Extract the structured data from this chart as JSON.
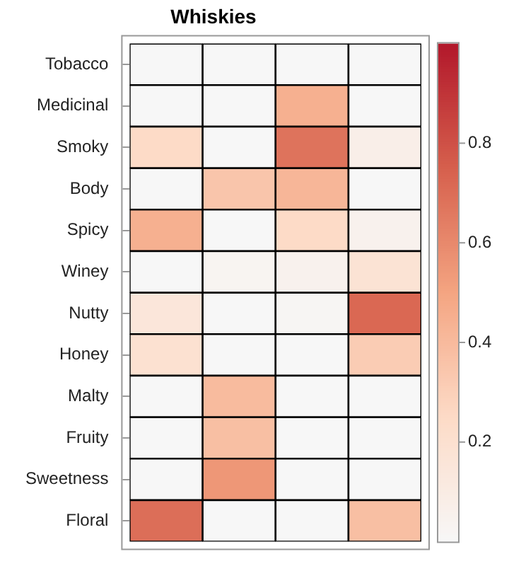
{
  "chart_data": {
    "type": "heatmap",
    "title": "Whiskies",
    "categories": [
      null,
      null,
      null,
      null
    ],
    "y_categories": [
      "Tobacco",
      "Medicinal",
      "Smoky",
      "Body",
      "Spicy",
      "Winey",
      "Nutty",
      "Honey",
      "Malty",
      "Fruity",
      "Sweetness",
      "Floral"
    ],
    "cells": [
      [
        0,
        0,
        0,
        0
      ],
      [
        0,
        0,
        0.45,
        0
      ],
      [
        0.25,
        0,
        0.68,
        0.08
      ],
      [
        0,
        0.35,
        0.42,
        0
      ],
      [
        0.45,
        0,
        0.25,
        0.05
      ],
      [
        0,
        0.03,
        0.05,
        0.18
      ],
      [
        0.15,
        0,
        0.02,
        0.72
      ],
      [
        0.2,
        0,
        0,
        0.32
      ],
      [
        0,
        0.4,
        0,
        0
      ],
      [
        0,
        0.38,
        0,
        0
      ],
      [
        0,
        0.55,
        0,
        0
      ],
      [
        0.7,
        0,
        0,
        0.38
      ]
    ],
    "clim": [
      0,
      1
    ],
    "cticks": [
      0.2,
      0.4,
      0.6,
      0.8
    ]
  }
}
